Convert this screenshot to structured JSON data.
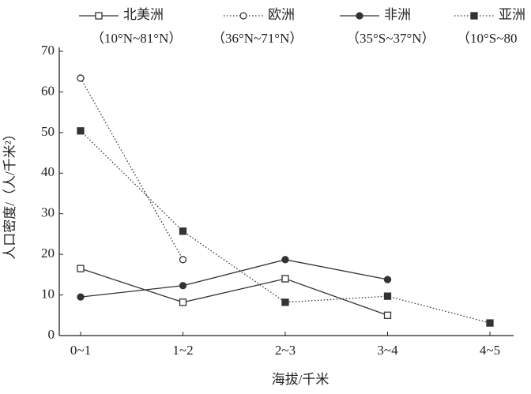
{
  "chart_data": {
    "type": "line",
    "x_label": "海拔/千米",
    "y_label": "人口密度/（人/千米²）",
    "categories": [
      "0~1",
      "1~2",
      "2~3",
      "3~4",
      "4~5"
    ],
    "series": [
      {
        "name": "北美洲",
        "sublabel": "（10°N~81°N）",
        "color": "#333333",
        "marker": "square-open",
        "line": "solid",
        "values": [
          16.5,
          8.2,
          14,
          5,
          null
        ]
      },
      {
        "name": "欧洲",
        "sublabel": "（36°N~71°N）",
        "color": "#333333",
        "marker": "circle-open",
        "line": "dotted",
        "values": [
          63.4,
          18.7,
          null,
          null,
          null
        ]
      },
      {
        "name": "非洲",
        "sublabel": "（35°S~37°N）",
        "color": "#333333",
        "marker": "circle-filled",
        "line": "solid",
        "values": [
          9.5,
          12.3,
          18.7,
          13.8,
          null
        ]
      },
      {
        "name": "亚洲",
        "sublabel": "（10°S~80",
        "color": "#333333",
        "marker": "square-filled",
        "line": "dotted",
        "values": [
          50.4,
          25.7,
          8.2,
          9.7,
          3.1
        ]
      }
    ],
    "ylim": [
      0,
      70
    ],
    "yticks": [
      0,
      10,
      20,
      30,
      40,
      50,
      60,
      70
    ]
  }
}
